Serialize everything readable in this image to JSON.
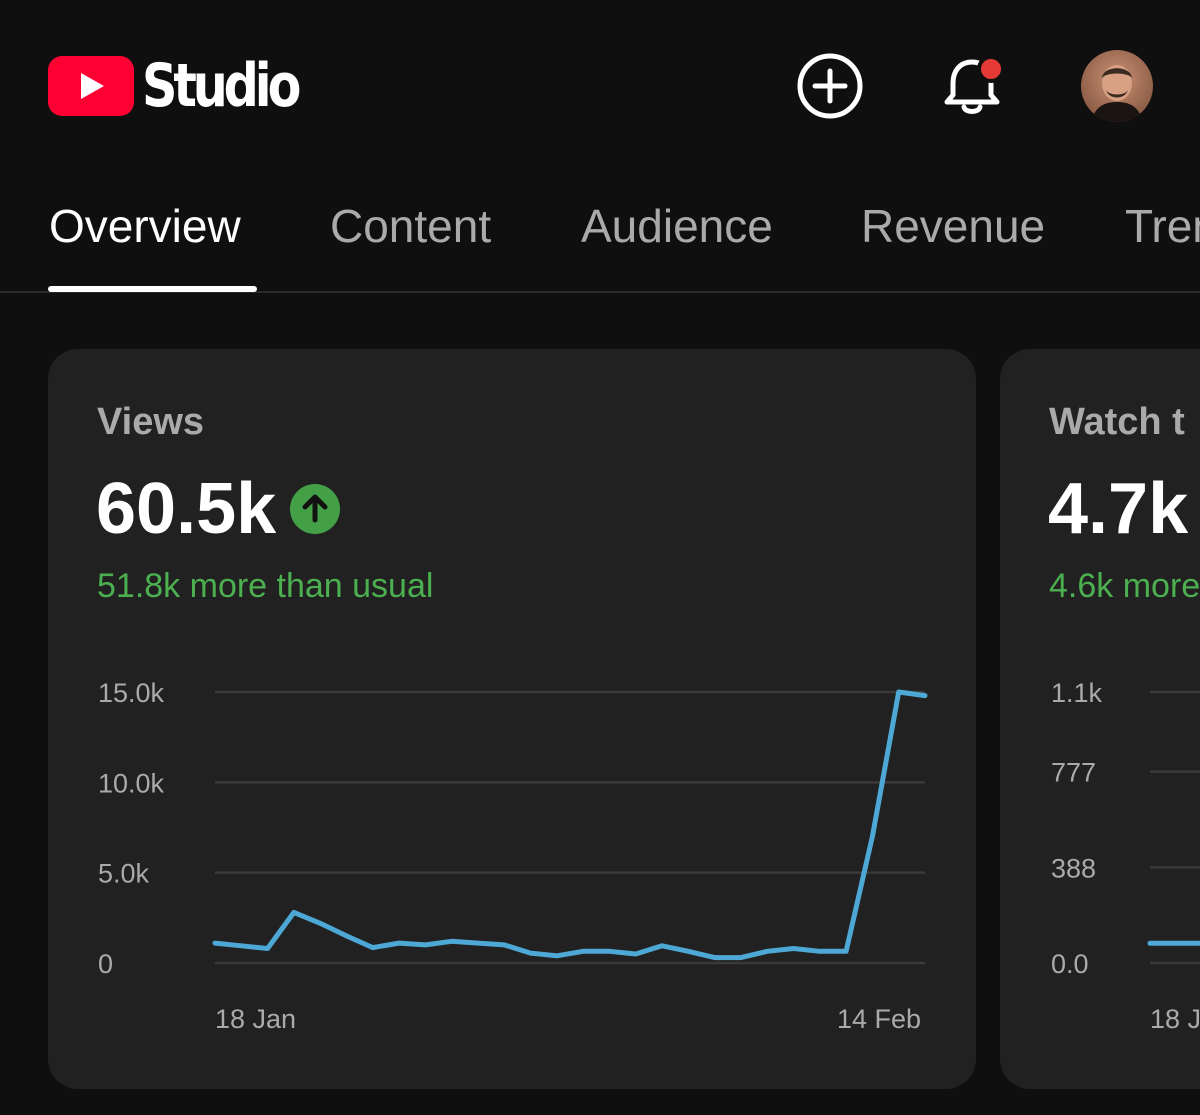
{
  "header": {
    "app_name": "Studio",
    "icons": {
      "logo": "youtube-play-logo",
      "create": "plus-circle-icon",
      "notifications": "bell-icon",
      "avatar": "user-avatar"
    },
    "notification_dot_color": "#e53935"
  },
  "tabs": [
    {
      "label": "Overview",
      "active": true
    },
    {
      "label": "Content",
      "active": false
    },
    {
      "label": "Audience",
      "active": false
    },
    {
      "label": "Revenue",
      "active": false
    },
    {
      "label": "Tren",
      "active": false
    }
  ],
  "cards": {
    "views": {
      "label": "Views",
      "value": "60.5k",
      "trend_icon": "arrow-up-icon",
      "delta_text": "51.8k more than usual",
      "chart_data": {
        "type": "line",
        "y_ticks": [
          {
            "label": "15.0k",
            "value": 15000
          },
          {
            "label": "10.0k",
            "value": 10000
          },
          {
            "label": "5.0k",
            "value": 5000
          },
          {
            "label": "0",
            "value": 0
          }
        ],
        "ylim": [
          0,
          15000
        ],
        "x_tick_labels": [
          "18 Jan",
          "14 Feb"
        ],
        "series": [
          {
            "values": [
              1100,
              950,
              800,
              2800,
              2200,
              1500,
              850,
              1100,
              1000,
              1200,
              1100,
              1000,
              550,
              400,
              650,
              650,
              500,
              950,
              650,
              300,
              300,
              650,
              800,
              650,
              650,
              7000,
              15000,
              14800
            ],
            "color": "#4da8d6"
          }
        ],
        "grid": true,
        "line_color": "#4da8d6"
      }
    },
    "watch_time": {
      "label": "Watch t",
      "value": "4.7k",
      "delta_text": "4.6k more",
      "chart_data": {
        "type": "line",
        "y_ticks": [
          {
            "label": "1.1k",
            "value": 1100
          },
          {
            "label": "777",
            "value": 777
          },
          {
            "label": "388",
            "value": 388
          },
          {
            "label": "0.0",
            "value": 0
          }
        ],
        "ylim": [
          0,
          1100
        ],
        "x_tick_labels": [
          "18 J"
        ],
        "series": [
          {
            "values": [
              80,
              80,
              80
            ],
            "color": "#4da8d6"
          }
        ],
        "grid": true
      }
    }
  }
}
